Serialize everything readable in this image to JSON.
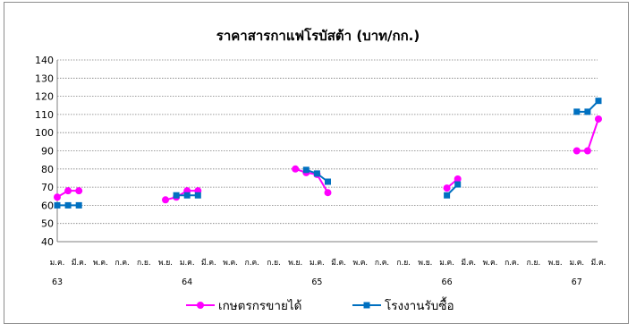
{
  "chart_data": {
    "type": "line",
    "title": "ราคาสารกาแฟโรบัสต้า (บาท/กก.)",
    "ylim": [
      40,
      140
    ],
    "yticks": [
      "40",
      "50",
      "60",
      "70",
      "80",
      "90",
      "100",
      "110",
      "120",
      "130",
      "140"
    ],
    "grid": true,
    "legend_position": "bottom",
    "month_labels": [
      "ม.ค.",
      "มี.ค.",
      "พ.ค.",
      "ก.ค.",
      "ก.ย.",
      "พ.ย."
    ],
    "years": [
      "63",
      "64",
      "65",
      "66",
      "67"
    ],
    "series": [
      {
        "name": "เกษตรกรขายได้",
        "color": "#ff00ff",
        "marker": "circle",
        "segments": [
          [
            [
              0,
              64.5
            ],
            [
              1,
              68
            ],
            [
              2,
              68
            ]
          ],
          [
            [
              10,
              63
            ],
            [
              11,
              64.5
            ],
            [
              12,
              68
            ],
            [
              13,
              68
            ]
          ],
          [
            [
              22,
              80
            ],
            [
              23,
              78
            ],
            [
              24,
              77
            ],
            [
              25,
              67
            ]
          ],
          [
            [
              36,
              69.5
            ],
            [
              37,
              74.5
            ]
          ],
          [
            [
              48,
              90
            ],
            [
              49,
              90
            ],
            [
              50,
              107.5
            ]
          ]
        ]
      },
      {
        "name": "โรงงานรับซื้อ",
        "color": "#0070c0",
        "marker": "square",
        "segments": [
          [
            [
              0,
              60
            ],
            [
              1,
              60
            ],
            [
              2,
              60
            ]
          ],
          [
            [
              11,
              65.5
            ],
            [
              12,
              65.5
            ],
            [
              13,
              65.5
            ]
          ],
          [
            [
              23,
              79.5
            ],
            [
              24,
              77.5
            ],
            [
              25,
              73
            ]
          ],
          [
            [
              36,
              65.5
            ],
            [
              37,
              71.5
            ]
          ],
          [
            [
              48,
              111.5
            ],
            [
              49,
              111.5
            ],
            [
              50,
              117.5
            ]
          ]
        ]
      }
    ]
  }
}
